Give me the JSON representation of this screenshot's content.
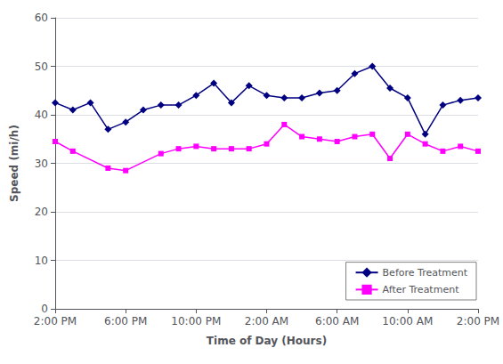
{
  "chart_data": {
    "type": "line",
    "xlabel": "Time of Day (Hours)",
    "ylabel": "Speed (mi/h)",
    "xlim": [
      0,
      24
    ],
    "xticks": [
      {
        "value": 0,
        "label": "2:00 PM"
      },
      {
        "value": 4,
        "label": "6:00 PM"
      },
      {
        "value": 8,
        "label": "10:00 PM"
      },
      {
        "value": 12,
        "label": "2:00 AM"
      },
      {
        "value": 16,
        "label": "6:00 AM"
      },
      {
        "value": 20,
        "label": "10:00 AM"
      },
      {
        "value": 24,
        "label": "2:00 PM"
      }
    ],
    "ylim": [
      0,
      60
    ],
    "yticks": [
      0,
      10,
      20,
      30,
      40,
      50,
      60
    ],
    "grid": "y",
    "legend": "lower right",
    "series": [
      {
        "name": "Before Treatment",
        "color": "#000080",
        "marker": "diamond",
        "x": [
          0,
          1,
          2,
          3,
          4,
          5,
          6,
          7,
          8,
          9,
          10,
          11,
          12,
          13,
          14,
          15,
          16,
          17,
          18,
          19,
          20,
          21,
          22,
          23,
          24
        ],
        "values": [
          42.5,
          41.0,
          42.5,
          37.0,
          38.5,
          41.0,
          42.0,
          42.0,
          44.0,
          46.5,
          42.5,
          46.0,
          44.0,
          43.5,
          43.5,
          44.5,
          45.0,
          48.5,
          50.0,
          45.5,
          43.5,
          36.0,
          42.0,
          43.0,
          43.5
        ]
      },
      {
        "name": "After Treatment",
        "color": "#FF00FF",
        "marker": "square",
        "x": [
          0,
          1,
          3,
          4,
          6,
          7,
          8,
          9,
          10,
          11,
          12,
          13,
          14,
          15,
          16,
          17,
          18,
          19,
          20,
          21,
          22,
          23,
          24
        ],
        "values": [
          34.5,
          32.5,
          29.0,
          28.5,
          32.0,
          33.0,
          33.5,
          33.0,
          33.0,
          33.0,
          34.0,
          38.0,
          35.5,
          35.0,
          34.5,
          35.5,
          36.0,
          31.0,
          36.0,
          34.0,
          32.5,
          33.5,
          32.5
        ]
      }
    ]
  }
}
